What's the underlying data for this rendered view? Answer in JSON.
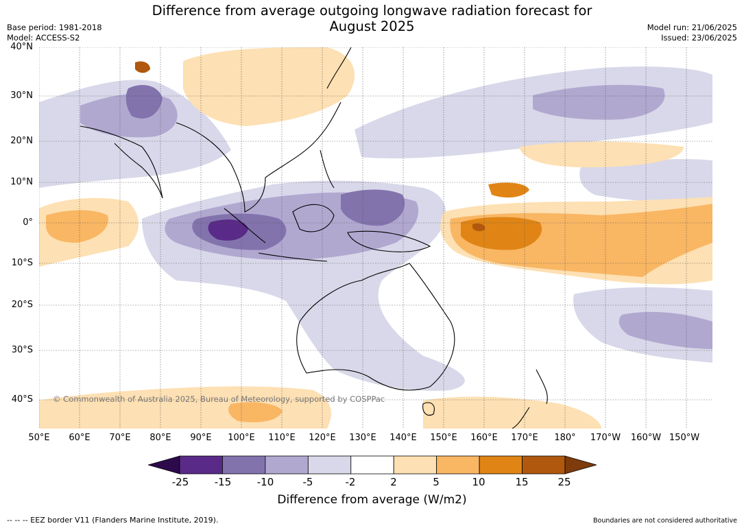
{
  "title_line1": "Difference from average outgoing longwave radiation forecast for",
  "title_line2": "August 2025",
  "base_period": "Base period: 1981-2018",
  "model": "Model: ACCESS-S2",
  "model_run": "Model run: 21/06/2025",
  "issued": "Issued: 23/06/2025",
  "lat_labels": [
    "40°N",
    "30°N",
    "20°N",
    "10°N",
    "0°",
    "10°S",
    "20°S",
    "30°S",
    "40°S"
  ],
  "lon_labels": [
    "50°E",
    "60°E",
    "70°E",
    "80°E",
    "90°E",
    "100°E",
    "110°E",
    "120°E",
    "130°E",
    "140°E",
    "150°E",
    "160°E",
    "170°E",
    "180°",
    "170°W",
    "160°W",
    "150°W"
  ],
  "copyright": "© Commonwealth of Australia 2025, Bureau of Meteorology, supported by COSPPac",
  "colorbar": {
    "ticks": [
      "-25",
      "-15",
      "-10",
      "-5",
      "-2",
      "2",
      "5",
      "10",
      "15",
      "25"
    ],
    "title": "Difference from average (W/m2)",
    "colors": [
      "#2d0a4b",
      "#5a2a88",
      "#8273ad",
      "#b1a8d0",
      "#d8d8ea",
      "#ffffff",
      "#fde0b3",
      "#f9b663",
      "#e08515",
      "#b0580e",
      "#7e3b0c"
    ]
  },
  "footer_left": "--  --  -- EEZ border V11 (Flanders Marine Institute, 2019).",
  "footer_right": "Boundaries are not considered authoritative"
}
